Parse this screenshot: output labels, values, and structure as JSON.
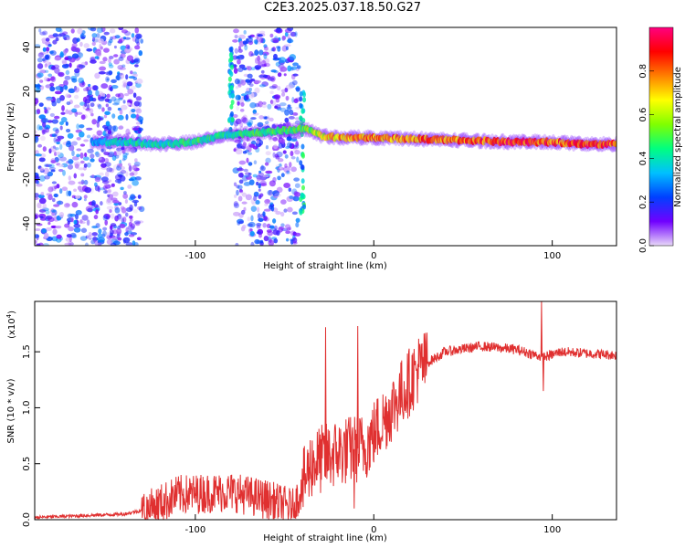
{
  "figure": {
    "title": "C2E3.2025.037.18.50.G27"
  },
  "chart_data": [
    {
      "type": "heatmap",
      "name": "spectrogram",
      "xlabel": "Height of straight line (km)",
      "ylabel": "Frequency (Hz)",
      "xlim": [
        -190,
        136
      ],
      "ylim": [
        -50,
        49
      ],
      "xticks": [
        -100,
        0,
        100
      ],
      "xtick_labels": [
        "-100",
        "0",
        "100"
      ],
      "yticks": [
        -40,
        -20,
        0,
        20,
        40
      ],
      "ytick_labels": [
        "-40",
        "-20",
        "0",
        "20",
        "40"
      ],
      "colorbar": {
        "label": "Normalized spectral amplitude",
        "range": [
          0,
          1
        ],
        "ticks": [
          0,
          0.2,
          0.4,
          0.6,
          0.8
        ],
        "tick_labels": [
          "0.0",
          "0.2",
          "0.4",
          "0.6",
          "0.8"
        ],
        "colormap": [
          "#e8d8f8",
          "#7000ff",
          "#0040ff",
          "#00c0ff",
          "#00ff80",
          "#80ff00",
          "#ffff00",
          "#ff8000",
          "#ff0000",
          "#ff0080"
        ]
      },
      "ridge": [
        {
          "x": -158,
          "y": -3,
          "amp": 0.35
        },
        {
          "x": -140,
          "y": -3,
          "amp": 0.45
        },
        {
          "x": -120,
          "y": -4,
          "amp": 0.45
        },
        {
          "x": -100,
          "y": -3,
          "amp": 0.5
        },
        {
          "x": -85,
          "y": 0,
          "amp": 0.45
        },
        {
          "x": -38,
          "y": 3,
          "amp": 0.55
        },
        {
          "x": -30,
          "y": 0,
          "amp": 0.7
        },
        {
          "x": -20,
          "y": -1,
          "amp": 0.8
        },
        {
          "x": 0,
          "y": -1,
          "amp": 0.85
        },
        {
          "x": 40,
          "y": -2,
          "amp": 0.85
        },
        {
          "x": 80,
          "y": -3,
          "amp": 0.95
        },
        {
          "x": 100,
          "y": -3,
          "amp": 0.9
        },
        {
          "x": 120,
          "y": -4,
          "amp": 0.95
        },
        {
          "x": 136,
          "y": -4,
          "amp": 0.9
        }
      ],
      "noise_regions": [
        {
          "x_from": -190,
          "x_to": -130,
          "level": 0.3
        },
        {
          "x_from": -78,
          "x_to": -42,
          "level": 0.3
        }
      ],
      "vertical_bands": [
        {
          "x": -80,
          "y_from": 0,
          "y_to": 40
        },
        {
          "x": -40,
          "y_from": -35,
          "y_to": 20
        }
      ],
      "grid": false
    },
    {
      "type": "line",
      "name": "snr",
      "xlabel": "Height of straight line (km)",
      "ylabel": "SNR (10 * v/v)",
      "yscale_label": "(x10",
      "yscale_exponent": "4",
      "yscale_suffix": ")",
      "xlim": [
        -190,
        136
      ],
      "ylim": [
        0,
        1.95
      ],
      "xticks": [
        -100,
        0,
        100
      ],
      "xtick_labels": [
        "-100",
        "0",
        "100"
      ],
      "yticks": [
        0,
        0.5,
        1.0,
        1.5
      ],
      "ytick_labels": [
        "0.0",
        "0.5",
        "1.0",
        "1.5"
      ],
      "color": "#e03030",
      "trend": [
        {
          "x": -190,
          "y": 0.02
        },
        {
          "x": -140,
          "y": 0.05
        },
        {
          "x": -125,
          "y": 0.1
        },
        {
          "x": -110,
          "y": 0.22
        },
        {
          "x": -80,
          "y": 0.25
        },
        {
          "x": -60,
          "y": 0.18
        },
        {
          "x": -45,
          "y": 0.1
        },
        {
          "x": -35,
          "y": 0.5
        },
        {
          "x": -20,
          "y": 0.6
        },
        {
          "x": -5,
          "y": 0.65
        },
        {
          "x": 10,
          "y": 1.0
        },
        {
          "x": 25,
          "y": 1.35
        },
        {
          "x": 40,
          "y": 1.5
        },
        {
          "x": 60,
          "y": 1.55
        },
        {
          "x": 80,
          "y": 1.52
        },
        {
          "x": 95,
          "y": 1.45
        },
        {
          "x": 105,
          "y": 1.5
        },
        {
          "x": 136,
          "y": 1.47
        }
      ],
      "spikes": [
        {
          "x": -27,
          "y": 1.72
        },
        {
          "x": -9,
          "y": 1.73
        },
        {
          "x": -11,
          "y": 0.1
        },
        {
          "x": 94,
          "y": 1.95
        },
        {
          "x": 95,
          "y": 1.15
        }
      ],
      "grid": false
    }
  ]
}
